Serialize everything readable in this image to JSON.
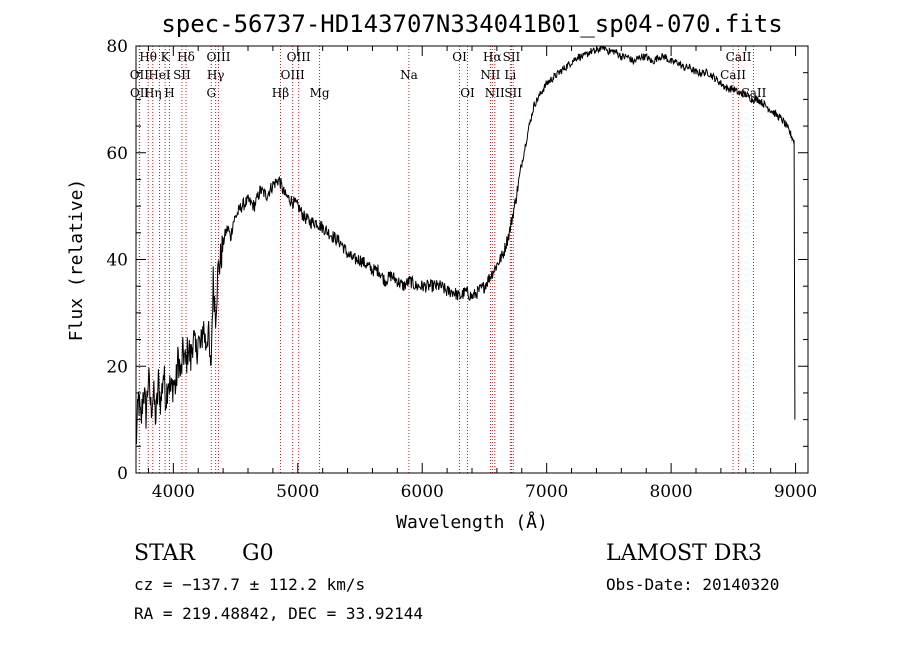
{
  "chart_data": {
    "type": "line",
    "title": "spec-56737-HD143707N334041B01_sp04-070.fits",
    "xlabel": "Wavelength (Å)",
    "ylabel": "Flux (relative)",
    "xlim": [
      3700,
      9100
    ],
    "ylim": [
      0,
      80
    ],
    "xticks": [
      4000,
      5000,
      6000,
      7000,
      8000,
      9000
    ],
    "yticks": [
      0,
      20,
      40,
      60,
      80
    ],
    "xtick_labels": [
      "4000",
      "5000",
      "6000",
      "7000",
      "8000",
      "9000"
    ],
    "ytick_labels": [
      "0",
      "20",
      "40",
      "60",
      "80"
    ],
    "series": [
      {
        "name": "flux",
        "x": [
          3700,
          3720,
          3740,
          3760,
          3780,
          3800,
          3820,
          3840,
          3860,
          3880,
          3900,
          3920,
          3940,
          3960,
          3980,
          4000,
          4020,
          4040,
          4060,
          4080,
          4100,
          4120,
          4140,
          4160,
          4180,
          4200,
          4220,
          4240,
          4260,
          4280,
          4300,
          4320,
          4340,
          4360,
          4380,
          4400,
          4420,
          4440,
          4460,
          4480,
          4500,
          4550,
          4600,
          4650,
          4700,
          4750,
          4800,
          4850,
          4880,
          4900,
          4950,
          5000,
          5050,
          5100,
          5150,
          5200,
          5250,
          5300,
          5350,
          5400,
          5450,
          5500,
          5550,
          5600,
          5650,
          5700,
          5750,
          5800,
          5850,
          5900,
          5950,
          6000,
          6050,
          6100,
          6150,
          6200,
          6250,
          6300,
          6350,
          6400,
          6450,
          6500,
          6550,
          6600,
          6650,
          6700,
          6750,
          6800,
          6850,
          6900,
          6950,
          7000,
          7050,
          7100,
          7150,
          7200,
          7250,
          7300,
          7350,
          7400,
          7450,
          7500,
          7550,
          7600,
          7650,
          7700,
          7750,
          7800,
          7850,
          7900,
          7950,
          8000,
          8050,
          8100,
          8150,
          8200,
          8250,
          8300,
          8350,
          8400,
          8450,
          8500,
          8550,
          8600,
          8650,
          8700,
          8750,
          8800,
          8850,
          8900,
          8950,
          8990
        ],
        "y": [
          5,
          14,
          9,
          16,
          11,
          18,
          12,
          15,
          10,
          17,
          13,
          19,
          14,
          18,
          15,
          17,
          16,
          22,
          18,
          23,
          20,
          24,
          21,
          26,
          22,
          25,
          23,
          28,
          24,
          27,
          18,
          36,
          30,
          38,
          40,
          43,
          45,
          46,
          44,
          47,
          48,
          50,
          51,
          50,
          53,
          52,
          54,
          55,
          53,
          52,
          51,
          50,
          48,
          47,
          47,
          46,
          45,
          44,
          43,
          41,
          40,
          40,
          39,
          38,
          38,
          36,
          37,
          36,
          35,
          36,
          35,
          35,
          35,
          35,
          35,
          34,
          34,
          33,
          34,
          33,
          34,
          35,
          37,
          39,
          41,
          45,
          51,
          58,
          64,
          69,
          71,
          73,
          74,
          75,
          76,
          77,
          78,
          78,
          79,
          79,
          80,
          79,
          79,
          78,
          78,
          77,
          78,
          78,
          77,
          78,
          78,
          77,
          77,
          76,
          76,
          75,
          75,
          75,
          74,
          73,
          72,
          72,
          71,
          71,
          70,
          70,
          69,
          68,
          67,
          66,
          64,
          62
        ]
      }
    ],
    "line_marks": [
      {
        "label": "Hθ",
        "wl": 3798,
        "row": 1
      },
      {
        "label": "OII",
        "wl": 3727,
        "row": 2
      },
      {
        "label": "OII",
        "wl": 3729,
        "row": 3
      },
      {
        "label": "K",
        "wl": 3934,
        "row": 1
      },
      {
        "label": "HeI",
        "wl": 3889,
        "row": 2
      },
      {
        "label": "Hη",
        "wl": 3835,
        "row": 3
      },
      {
        "label": "Hδ",
        "wl": 4102,
        "row": 1
      },
      {
        "label": "SII",
        "wl": 4069,
        "row": 2
      },
      {
        "label": "H",
        "wl": 3969,
        "row": 3
      },
      {
        "label": "OIII",
        "wl": 4363,
        "row": 1
      },
      {
        "label": "Hγ",
        "wl": 4340,
        "row": 2
      },
      {
        "label": "G",
        "wl": 4305,
        "row": 3
      },
      {
        "label": "OIII",
        "wl": 5007,
        "row": 1
      },
      {
        "label": "OIII",
        "wl": 4959,
        "row": 2
      },
      {
        "label": "Hβ",
        "wl": 4861,
        "row": 3
      },
      {
        "label": "Mg",
        "wl": 5175,
        "row": 3
      },
      {
        "label": "Na",
        "wl": 5893,
        "row": 2
      },
      {
        "label": "OI",
        "wl": 6300,
        "row": 1
      },
      {
        "label": "OI",
        "wl": 6364,
        "row": 3
      },
      {
        "label": "Hα",
        "wl": 6563,
        "row": 1
      },
      {
        "label": "NII",
        "wl": 6548,
        "row": 2
      },
      {
        "label": "NII",
        "wl": 6583,
        "row": 3
      },
      {
        "label": "SII",
        "wl": 6717,
        "row": 1
      },
      {
        "label": "Li",
        "wl": 6708,
        "row": 2
      },
      {
        "label": "SII",
        "wl": 6731,
        "row": 3
      },
      {
        "label": "CaII",
        "wl": 8542,
        "row": 1
      },
      {
        "label": "CaII",
        "wl": 8498,
        "row": 2
      },
      {
        "label": "CaII",
        "wl": 8662,
        "row": 3
      }
    ],
    "line_color": "#b22222",
    "spectrum_color": "#000000"
  },
  "info": {
    "object_class": "STAR",
    "subclass": "G0",
    "survey": "LAMOST DR3",
    "cz": "cz = −137.7 ± 112.2 km/s",
    "obs_date": "Obs-Date: 20140320",
    "coords": "RA = 219.48842, DEC =  33.92144"
  }
}
